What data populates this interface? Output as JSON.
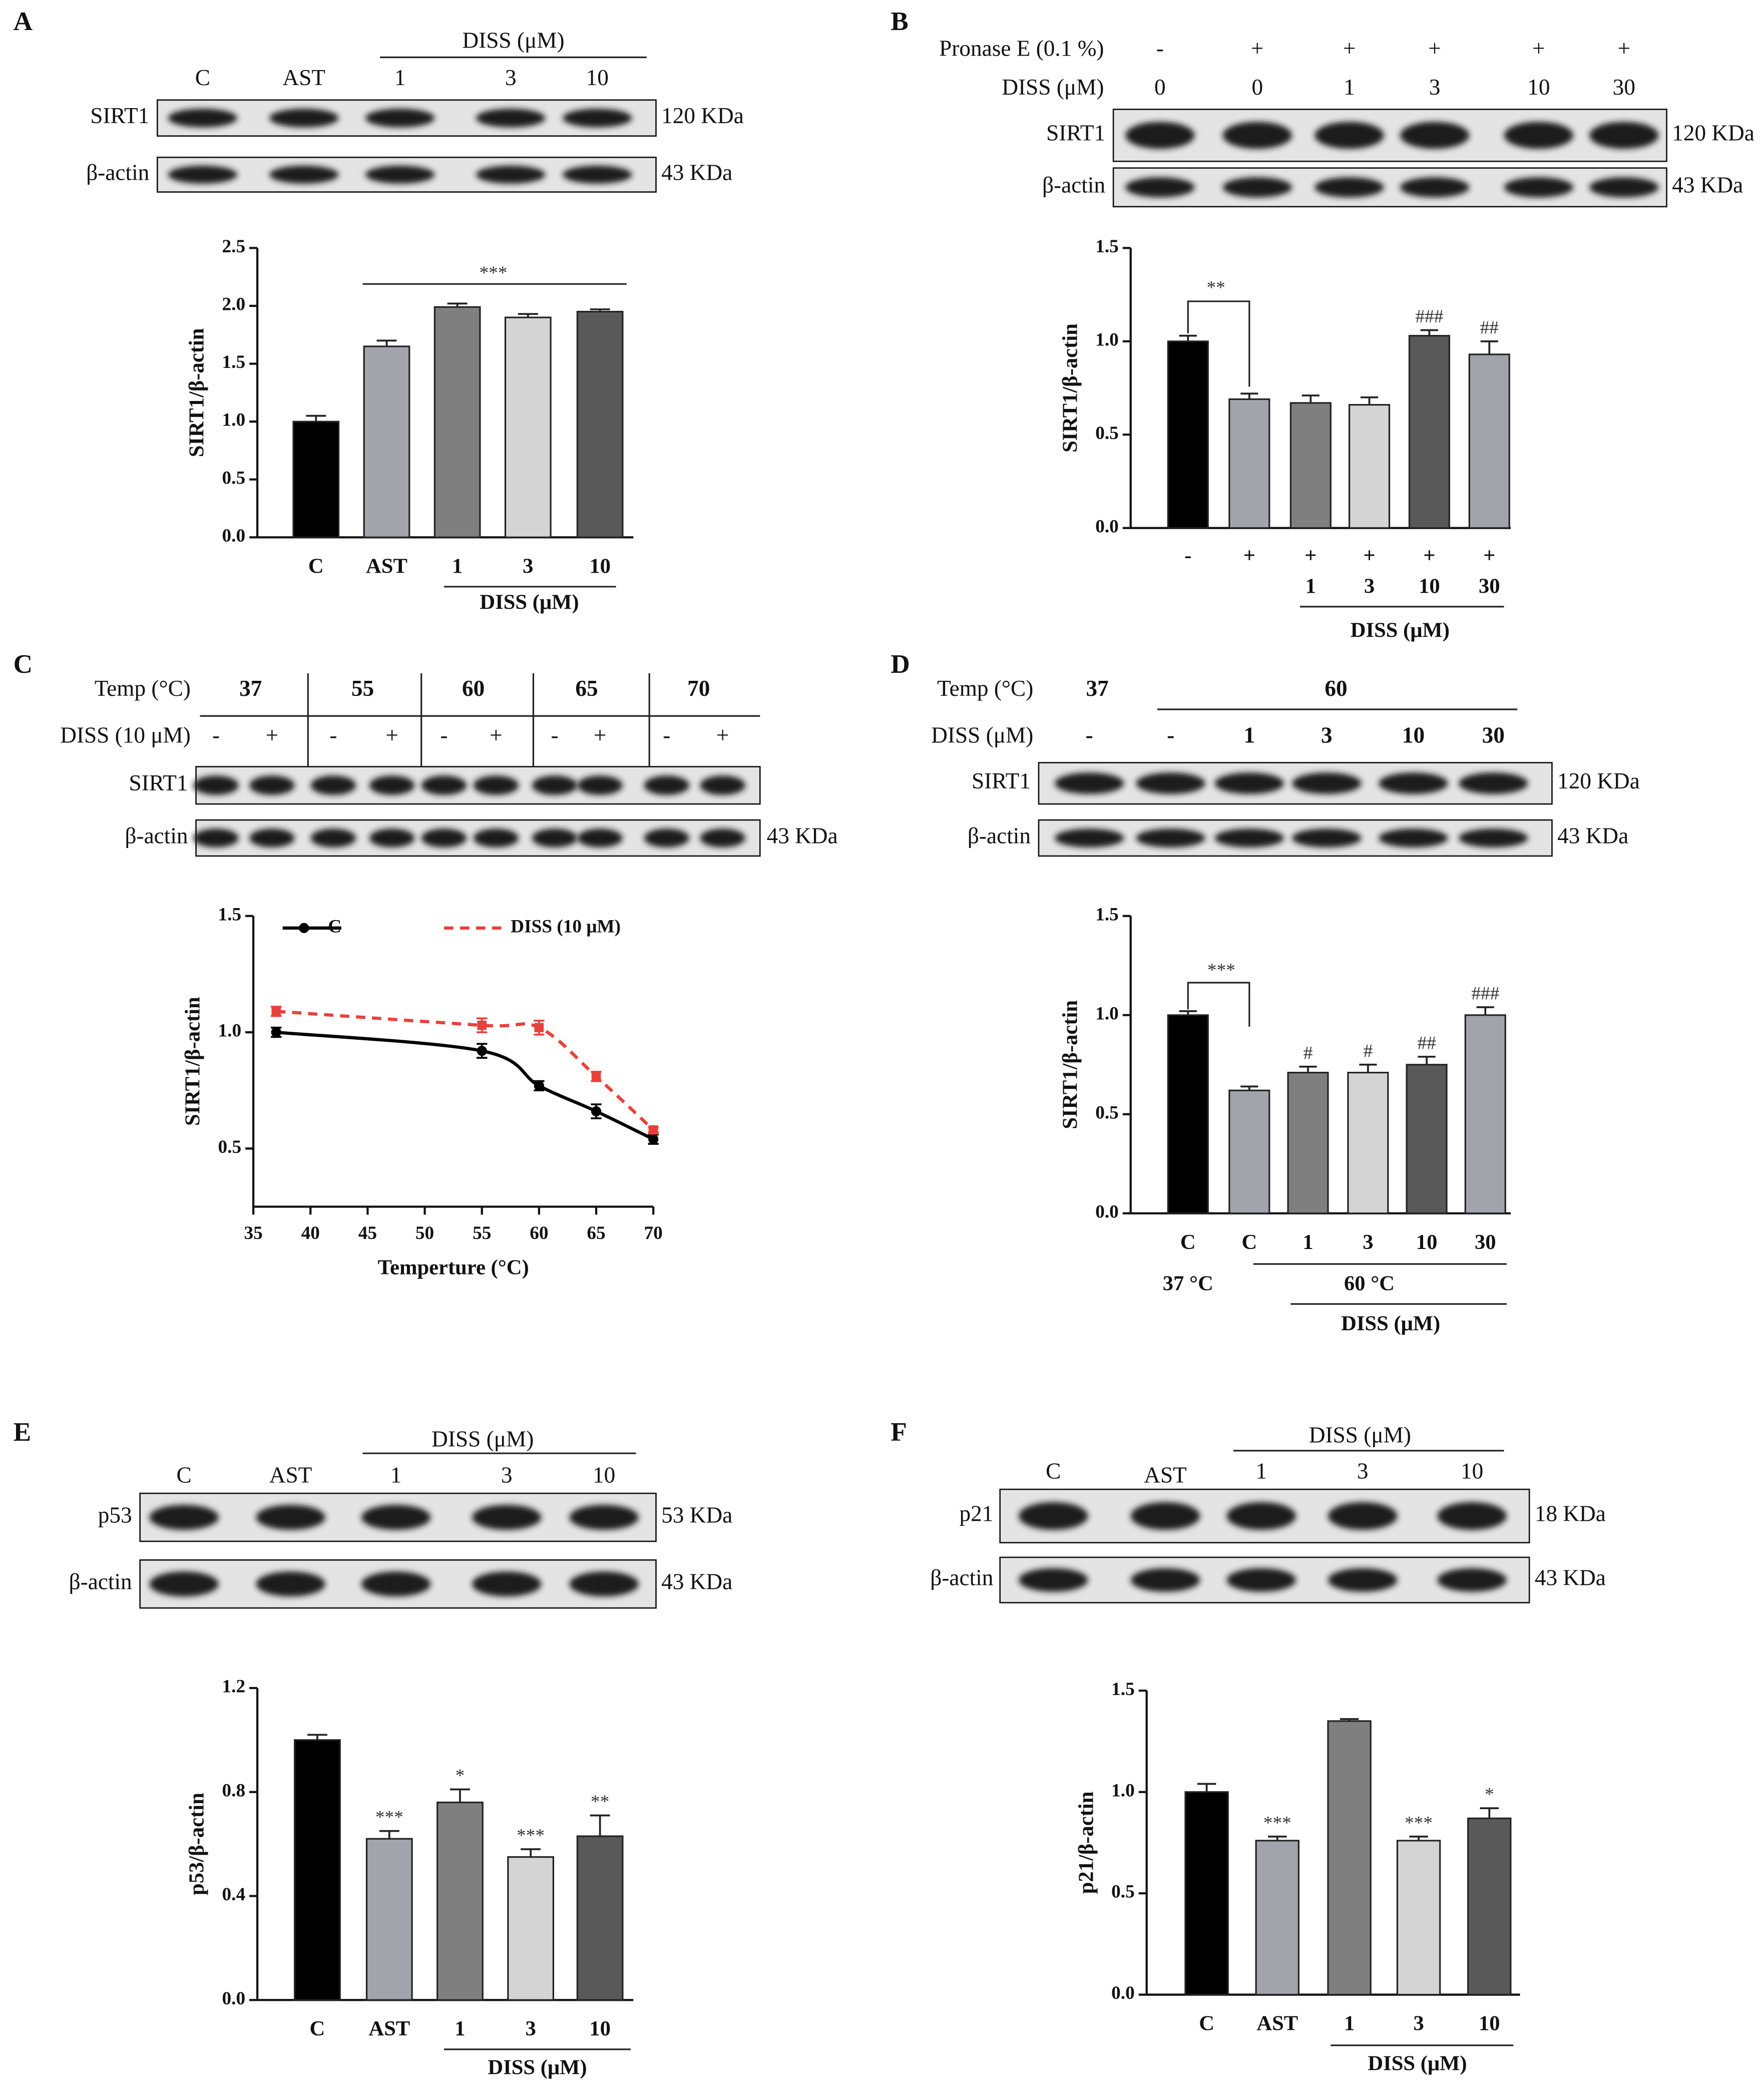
{
  "chart_data": [
    {
      "panel": "A",
      "type": "bar",
      "blot": {
        "header": "DISS (μM)",
        "lanes": [
          "C",
          "AST",
          "1",
          "3",
          "10"
        ],
        "rows": [
          {
            "label": "SIRT1",
            "size": "120 KDa"
          },
          {
            "label": "β-actin",
            "size": "43 KDa"
          }
        ]
      },
      "ylabel": "SIRT1/β-actin",
      "categories": [
        "C",
        "AST",
        "1",
        "3",
        "10"
      ],
      "values": [
        1.0,
        1.65,
        1.99,
        1.9,
        1.95
      ],
      "errors": [
        0.05,
        0.05,
        0.03,
        0.03,
        0.02
      ],
      "colors": [
        "#000000",
        "#a3a3ab",
        "#7f7f7f",
        "#d4d4d4",
        "#595959"
      ],
      "ylim": [
        0,
        2.5
      ],
      "yticks": [
        {
          "value": 0,
          "label": "0.0"
        },
        0.5,
        {
          "value": 1,
          "label": "1.0"
        },
        1.5,
        {
          "value": 2,
          "label": "2.0"
        },
        2.5
      ],
      "group_label": "DISS (μM)",
      "annotation": "***"
    },
    {
      "panel": "B",
      "type": "bar",
      "blot": {
        "conditions": [
          {
            "label": "Pronase E (0.1 %)",
            "lanes": [
              "-",
              "+",
              "+",
              "+",
              "+",
              "+"
            ]
          },
          {
            "label": "DISS (μM)",
            "lanes": [
              "0",
              "0",
              "1",
              "3",
              "10",
              "30"
            ]
          }
        ],
        "rows": [
          {
            "label": "SIRT1",
            "size": "120 KDa"
          },
          {
            "label": "β-actin",
            "size": "43 KDa"
          }
        ]
      },
      "ylabel": "SIRT1/β-actin",
      "categories": [
        "-",
        "+",
        "+",
        "+",
        "+",
        "+"
      ],
      "doses": [
        null,
        null,
        "1",
        "3",
        "10",
        "30"
      ],
      "values": [
        1.0,
        0.69,
        0.67,
        0.66,
        1.03,
        0.93
      ],
      "errors": [
        0.03,
        0.03,
        0.04,
        0.04,
        0.03,
        0.07
      ],
      "colors": [
        "#000000",
        "#a3a3ab",
        "#7f7f7f",
        "#d4d4d4",
        "#595959",
        "#a3a3ab"
      ],
      "ylim": [
        0,
        1.5
      ],
      "yticks": [
        {
          "value": 0,
          "label": "0.0"
        },
        0.5,
        {
          "value": 1,
          "label": "1.0"
        },
        1.5
      ],
      "group_label": "DISS (μM)",
      "annotation": "**",
      "marks": [
        null,
        null,
        null,
        null,
        "###",
        "##"
      ]
    },
    {
      "panel": "C",
      "type": "line",
      "blot": {
        "conditions": [
          {
            "label": "Temp (°C)",
            "lanes": [
              "37",
              "55",
              "60",
              "65",
              "70"
            ]
          },
          {
            "label": "DISS (10 μM)",
            "lanes": [
              "-",
              "+",
              "-",
              "+",
              "-",
              "+",
              "-",
              "+",
              "-",
              "+"
            ]
          }
        ],
        "rows": [
          {
            "label": "SIRT1"
          },
          {
            "label": "β-actin",
            "size": "43 KDa"
          }
        ]
      },
      "ylabel": "SIRT1/β-actin",
      "xlabel": "Temperture (°C)",
      "x": [
        37,
        55,
        60,
        65,
        70
      ],
      "series": [
        {
          "name": "C",
          "color": "#000000",
          "dash": false,
          "values": [
            1.0,
            0.92,
            0.77,
            0.66,
            0.54
          ],
          "errors": [
            0.02,
            0.03,
            0.02,
            0.03,
            0.02
          ]
        },
        {
          "name": "DISS (10 μM)",
          "color": "#e8413c",
          "dash": true,
          "values": [
            1.09,
            1.03,
            1.02,
            0.81,
            0.58
          ],
          "errors": [
            0.02,
            0.03,
            0.03,
            0.02,
            0.01
          ]
        }
      ],
      "xlim": [
        35,
        70
      ],
      "xticks": [
        35,
        40,
        45,
        50,
        55,
        60,
        65,
        70
      ],
      "ylim": [
        0.25,
        1.5
      ],
      "yticks": [
        0.5,
        {
          "value": 1,
          "label": "1.0"
        },
        1.5
      ]
    },
    {
      "panel": "D",
      "type": "bar",
      "blot": {
        "conditions": [
          {
            "label": "Temp (°C)",
            "lanes": [
              "37",
              "60"
            ]
          },
          {
            "label": "DISS (μM)",
            "lanes": [
              "-",
              "-",
              "1",
              "3",
              "10",
              "30"
            ]
          }
        ],
        "rows": [
          {
            "label": "SIRT1",
            "size": "120 KDa"
          },
          {
            "label": "β-actin",
            "size": "43 KDa"
          }
        ]
      },
      "ylabel": "SIRT1/β-actin",
      "categories": [
        "C",
        "C",
        "1",
        "3",
        "10",
        "30"
      ],
      "values": [
        1.0,
        0.62,
        0.71,
        0.71,
        0.75,
        1.0
      ],
      "errors": [
        0.02,
        0.02,
        0.03,
        0.04,
        0.04,
        0.04
      ],
      "colors": [
        "#000000",
        "#a3a3ab",
        "#7f7f7f",
        "#d4d4d4",
        "#595959",
        "#a3a3ab"
      ],
      "ylim": [
        0,
        1.5
      ],
      "yticks": [
        {
          "value": 0,
          "label": "0.0"
        },
        0.5,
        {
          "value": 1,
          "label": "1.0"
        },
        1.5
      ],
      "temps": [
        "37 °C",
        "60 °C"
      ],
      "group_label": "DISS (μM)",
      "annotation": "***",
      "marks": [
        null,
        null,
        "#",
        "#",
        "##",
        "###"
      ]
    },
    {
      "panel": "E",
      "type": "bar",
      "blot": {
        "header": "DISS (μM)",
        "lanes": [
          "C",
          "AST",
          "1",
          "3",
          "10"
        ],
        "rows": [
          {
            "label": "p53",
            "size": "53 KDa"
          },
          {
            "label": "β-actin",
            "size": "43 KDa"
          }
        ]
      },
      "ylabel": "p53/β-actin",
      "categories": [
        "C",
        "AST",
        "1",
        "3",
        "10"
      ],
      "values": [
        1.0,
        0.62,
        0.76,
        0.55,
        0.63
      ],
      "errors": [
        0.02,
        0.03,
        0.05,
        0.03,
        0.08
      ],
      "colors": [
        "#000000",
        "#a3a3ab",
        "#7f7f7f",
        "#d4d4d4",
        "#595959"
      ],
      "ylim": [
        0,
        1.2
      ],
      "yticks": [
        {
          "value": 0,
          "label": "0.0"
        },
        0.4,
        0.8,
        1.2
      ],
      "group_label": "DISS (μM)",
      "marks": [
        null,
        "***",
        "*",
        "***",
        "**"
      ]
    },
    {
      "panel": "F",
      "type": "bar",
      "blot": {
        "header": "DISS (μM)",
        "lanes": [
          "C",
          "AST",
          "1",
          "3",
          "10"
        ],
        "rows": [
          {
            "label": "p21",
            "size": "18 KDa"
          },
          {
            "label": "β-actin",
            "size": "43 KDa"
          }
        ]
      },
      "ylabel": "p21/β-actin",
      "categories": [
        "C",
        "AST",
        "1",
        "3",
        "10"
      ],
      "values": [
        1.0,
        0.76,
        1.35,
        0.76,
        0.87
      ],
      "errors": [
        0.04,
        0.02,
        0.01,
        0.02,
        0.05
      ],
      "colors": [
        "#000000",
        "#a3a3ab",
        "#7f7f7f",
        "#d4d4d4",
        "#595959"
      ],
      "ylim": [
        0,
        1.5
      ],
      "yticks": [
        {
          "value": 0,
          "label": "0.0"
        },
        0.5,
        {
          "value": 1,
          "label": "1.0"
        },
        1.5
      ],
      "group_label": "DISS (μM)",
      "marks": [
        null,
        "***",
        null,
        "***",
        "*"
      ]
    }
  ]
}
